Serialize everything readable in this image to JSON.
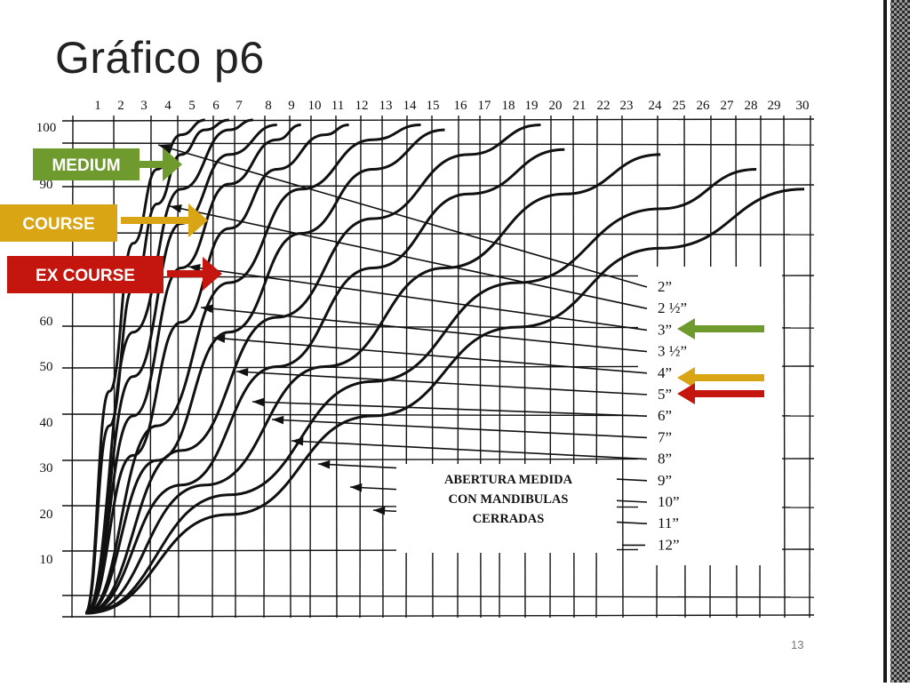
{
  "slide": {
    "title": "Gráfico p6",
    "page_number": "13"
  },
  "colors": {
    "medium": "#6f9a2e",
    "course": "#d9a514",
    "ex_course": "#c4160f",
    "ink": "#111111"
  },
  "categories": [
    {
      "id": "medium",
      "label": "MEDIUM",
      "color": "#6f9a2e",
      "points_to": "3”"
    },
    {
      "id": "course",
      "label": "COURSE",
      "color": "#d9a514",
      "points_to": "4”"
    },
    {
      "id": "ex_course",
      "label": "EX COURSE",
      "color": "#c4160f",
      "points_to": "5”"
    }
  ],
  "chart_data": {
    "type": "line",
    "top_axis_ticks": [
      "1",
      "2",
      "3",
      "4",
      "5",
      "6",
      "7",
      "8",
      "9",
      "10",
      "11",
      "12",
      "13",
      "14",
      "15",
      "16",
      "17",
      "18",
      "19",
      "20",
      "21",
      "22",
      "23",
      "24",
      "25",
      "26",
      "27",
      "28",
      "29",
      "30"
    ],
    "left_axis_ticks": [
      "100",
      "90",
      "60",
      "50",
      "40",
      "30",
      "20",
      "10"
    ],
    "ylim": [
      0,
      100
    ],
    "grid": true,
    "legend_position": "right",
    "note": [
      "ABERTURA MEDIDA",
      "CON MANDIBULAS",
      "CERRADAS"
    ],
    "series": [
      {
        "name": "2”",
        "x": [
          0,
          1,
          2,
          3,
          4,
          5
        ],
        "y": [
          0,
          45,
          75,
          90,
          97,
          100
        ]
      },
      {
        "name": "2 ½”",
        "x": [
          0,
          1,
          2,
          3,
          4,
          5,
          6
        ],
        "y": [
          0,
          38,
          66,
          83,
          93,
          98,
          100
        ]
      },
      {
        "name": "3”",
        "x": [
          0,
          2,
          4,
          6,
          7
        ],
        "y": [
          0,
          57,
          86,
          98,
          100
        ]
      },
      {
        "name": "3 ½”",
        "x": [
          0,
          2,
          4,
          6,
          8
        ],
        "y": [
          0,
          48,
          79,
          93,
          99
        ]
      },
      {
        "name": "4”",
        "x": [
          0,
          2,
          4,
          6,
          8,
          9
        ],
        "y": [
          0,
          40,
          70,
          87,
          96,
          99
        ]
      },
      {
        "name": "5”",
        "x": [
          0,
          2,
          4,
          6,
          8,
          10,
          11
        ],
        "y": [
          0,
          32,
          59,
          78,
          90,
          97,
          99
        ]
      },
      {
        "name": "6”",
        "x": [
          0,
          3,
          6,
          9,
          12,
          14
        ],
        "y": [
          0,
          38,
          67,
          86,
          96,
          99
        ]
      },
      {
        "name": "7”",
        "x": [
          0,
          3,
          6,
          9,
          12,
          15
        ],
        "y": [
          0,
          31,
          57,
          77,
          90,
          98
        ]
      },
      {
        "name": "8”",
        "x": [
          0,
          4,
          8,
          12,
          16,
          19
        ],
        "y": [
          0,
          33,
          60,
          80,
          93,
          99
        ]
      },
      {
        "name": "9”",
        "x": [
          0,
          4,
          8,
          12,
          16,
          20
        ],
        "y": [
          0,
          26,
          50,
          70,
          85,
          94
        ]
      },
      {
        "name": "10”",
        "x": [
          0,
          5,
          10,
          15,
          20,
          24
        ],
        "y": [
          0,
          26,
          50,
          70,
          85,
          93
        ]
      },
      {
        "name": "11”",
        "x": [
          0,
          6,
          12,
          18,
          24,
          28
        ],
        "y": [
          0,
          24,
          47,
          67,
          82,
          90
        ]
      },
      {
        "name": "12”",
        "x": [
          0,
          6,
          12,
          18,
          24,
          30
        ],
        "y": [
          0,
          20,
          40,
          58,
          74,
          86
        ]
      }
    ]
  }
}
